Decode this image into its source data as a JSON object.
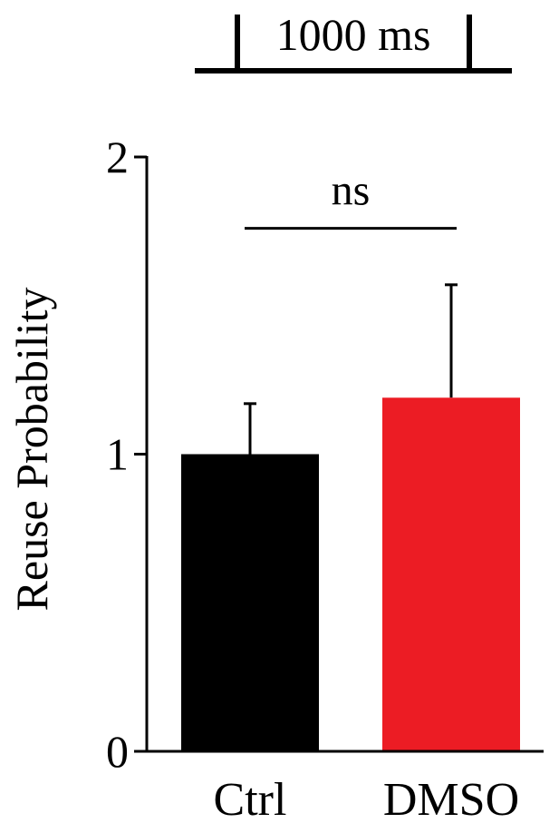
{
  "chart_data": {
    "type": "bar",
    "title": "",
    "xlabel": "",
    "ylabel": "Reuse Probability",
    "ylim": [
      0,
      2
    ],
    "yticks": [
      0,
      1,
      2
    ],
    "ytick_labels": [
      "0",
      "1",
      "2"
    ],
    "categories": [
      "Ctrl",
      "DMSO"
    ],
    "values": [
      1.0,
      1.19
    ],
    "errors": [
      0.17,
      0.38
    ],
    "colors": [
      "#000000",
      "#ec1c24"
    ],
    "grid": false,
    "legend": "none",
    "annotations": [
      {
        "text": "ns",
        "between": [
          "Ctrl",
          "DMSO"
        ],
        "y": 1.76
      }
    ]
  },
  "timing_bar": {
    "label": "1000 ms",
    "color": "#000000"
  }
}
